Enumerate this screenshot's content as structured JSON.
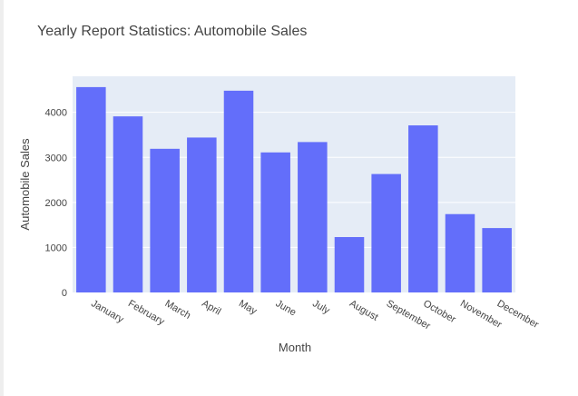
{
  "chart_data": {
    "type": "bar",
    "title": "Yearly Report Statistics: Automobile Sales",
    "xlabel": "Month",
    "ylabel": "Automobile Sales",
    "categories": [
      "January",
      "February",
      "March",
      "April",
      "May",
      "June",
      "July",
      "August",
      "September",
      "October",
      "November",
      "December"
    ],
    "values": [
      4560,
      3910,
      3190,
      3440,
      4480,
      3110,
      3340,
      1230,
      2630,
      3710,
      1740,
      1430
    ],
    "ylim": [
      0,
      4800
    ],
    "yticks": [
      0,
      1000,
      2000,
      3000,
      4000
    ],
    "grid": true,
    "legend": "none",
    "colors": {
      "bar": "#636efa",
      "plot_bg": "#e5ecf6",
      "grid": "#ffffff"
    }
  }
}
